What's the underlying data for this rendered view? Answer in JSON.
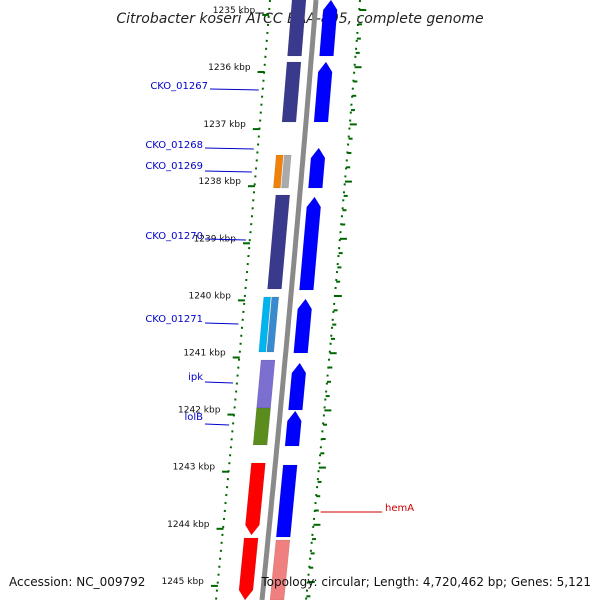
{
  "title": "Citrobacter koseri ATCC BAA-895, complete genome",
  "accession_text": "Accession: NC_009792",
  "topology_text": "Topology: circular; Length: 4,720,462 bp; Genes: 5,121",
  "ticks": [
    {
      "label": "1235 kbp",
      "kbp": 1235
    },
    {
      "label": "1236 kbp",
      "kbp": 1236
    },
    {
      "label": "1237 kbp",
      "kbp": 1237
    },
    {
      "label": "1238 kbp",
      "kbp": 1238
    },
    {
      "label": "1239 kbp",
      "kbp": 1239
    },
    {
      "label": "1240 kbp",
      "kbp": 1240
    },
    {
      "label": "1241 kbp",
      "kbp": 1241
    },
    {
      "label": "1242 kbp",
      "kbp": 1242
    },
    {
      "label": "1243 kbp",
      "kbp": 1243
    },
    {
      "label": "1244 kbp",
      "kbp": 1244
    },
    {
      "label": "1245 kbp",
      "kbp": 1245
    }
  ],
  "gene_labels": [
    {
      "text": "CKO_01267",
      "color": "#0000cc"
    },
    {
      "text": "CKO_01268",
      "color": "#0000cc"
    },
    {
      "text": "CKO_01269",
      "color": "#0000cc"
    },
    {
      "text": "CKO_01270",
      "color": "#0000cc"
    },
    {
      "text": "CKO_01271",
      "color": "#0000cc"
    },
    {
      "text": "ipk",
      "color": "#0000cc"
    },
    {
      "text": "lolB",
      "color": "#0000cc"
    },
    {
      "text": "hemA",
      "color": "#cc0000"
    }
  ],
  "colors": {
    "backbone": "#8a8a8a",
    "cds_forward": "#0000ff",
    "cds_reverse": "#ff0000",
    "tick": "#006600",
    "cog_dark_purple": "#3a3a8c",
    "cog_orange": "#f0820a",
    "cog_cyan": "#00b4f0",
    "cog_olive": "#5a8c1e",
    "cog_lavender": "#7b6fd0",
    "cog_salmon": "#f08080"
  }
}
